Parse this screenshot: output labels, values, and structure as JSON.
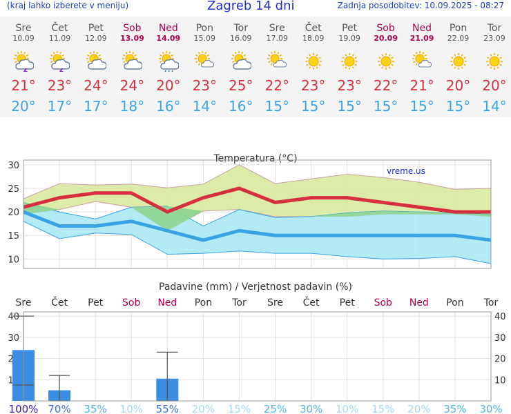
{
  "header": {
    "left_note": "(kraj lahko izberete v meniju)",
    "title": "Zagreb 14 dni",
    "updated": "Zadnja posodobitev: 10.09.2025 - 08:27"
  },
  "days": [
    {
      "name": "Sre",
      "date": "10.09",
      "weekend": false,
      "icon": "sun-cloud-thunder-icon",
      "tmax": "21°",
      "tmin": "20°"
    },
    {
      "name": "Čet",
      "date": "11.09",
      "weekend": false,
      "icon": "sun-cloud-thunder-icon",
      "tmax": "23°",
      "tmin": "17°"
    },
    {
      "name": "Pet",
      "date": "12.09",
      "weekend": false,
      "icon": "sun-cloud-icon",
      "tmax": "24°",
      "tmin": "17°"
    },
    {
      "name": "Sob",
      "date": "13.09",
      "weekend": true,
      "icon": "sun-cloud-icon",
      "tmax": "24°",
      "tmin": "18°"
    },
    {
      "name": "Ned",
      "date": "14.09",
      "weekend": true,
      "icon": "sun-cloud-rain-icon",
      "tmax": "20°",
      "tmin": "16°"
    },
    {
      "name": "Pon",
      "date": "15.09",
      "weekend": false,
      "icon": "sun-small-cloud-icon",
      "tmax": "23°",
      "tmin": "14°"
    },
    {
      "name": "Tor",
      "date": "16.09",
      "weekend": false,
      "icon": "sun-cloud-icon",
      "tmax": "25°",
      "tmin": "16°"
    },
    {
      "name": "Sre",
      "date": "17.09",
      "weekend": false,
      "icon": "sun-small-cloud-icon",
      "tmax": "22°",
      "tmin": "15°"
    },
    {
      "name": "Čet",
      "date": "18.09",
      "weekend": false,
      "icon": "sun-icon",
      "tmax": "23°",
      "tmin": "15°"
    },
    {
      "name": "Pet",
      "date": "19.09",
      "weekend": false,
      "icon": "sun-icon",
      "tmax": "23°",
      "tmin": "15°"
    },
    {
      "name": "Sob",
      "date": "20.09",
      "weekend": true,
      "icon": "sun-icon",
      "tmax": "22°",
      "tmin": "15°"
    },
    {
      "name": "Ned",
      "date": "21.09",
      "weekend": true,
      "icon": "sun-small-cloud-icon",
      "tmax": "21°",
      "tmin": "15°"
    },
    {
      "name": "Pon",
      "date": "22.09",
      "weekend": false,
      "icon": "sun-icon",
      "tmax": "20°",
      "tmin": "15°"
    },
    {
      "name": "Tor",
      "date": "23.09",
      "weekend": false,
      "icon": "sun-icon",
      "tmax": "20°",
      "tmin": "14°"
    }
  ],
  "colors": {
    "tmax": "#d63040",
    "tmin": "#3aa3e6",
    "weekend": "#b0004e",
    "max_band": "#d6e89a",
    "min_band": "#a6e6f2",
    "overlap_band": "#8fd48f",
    "precip_bar": "#3a8de0"
  },
  "chart_data": [
    {
      "type": "line",
      "title": "Temperatura (°C)",
      "watermark": "vreme.us",
      "x": [
        "Sre",
        "Čet",
        "Pet",
        "Sob",
        "Ned",
        "Pon",
        "Tor",
        "Sre",
        "Čet",
        "Pet",
        "Sob",
        "Ned",
        "Pon",
        "Tor"
      ],
      "ylim": [
        8,
        31
      ],
      "yticks": [
        10,
        15,
        20,
        25,
        30
      ],
      "grid": true,
      "series": [
        {
          "role": "max",
          "values": [
            21,
            23,
            24,
            24,
            20,
            23,
            25,
            22,
            23,
            23,
            22,
            21,
            20,
            20
          ]
        },
        {
          "role": "min",
          "values": [
            20,
            17,
            17,
            18,
            16,
            14,
            16,
            15,
            15,
            15,
            15,
            15,
            15,
            14
          ]
        }
      ],
      "max_band": {
        "upper": [
          22.8,
          26,
          25.7,
          25.9,
          25.1,
          25.9,
          30,
          26,
          27,
          28,
          27.3,
          26.3,
          24.8,
          25
        ],
        "lower": [
          19.5,
          20.5,
          22.2,
          21,
          16,
          20.2,
          20.5,
          19,
          19,
          19,
          19.5,
          19.5,
          19.5,
          19
        ]
      },
      "min_band": {
        "upper": [
          22,
          20,
          18.5,
          21,
          21.2,
          17,
          20.5,
          18.8,
          19,
          19.8,
          20.2,
          20,
          19.7,
          19.5
        ],
        "lower": [
          18,
          14.3,
          15.5,
          15.2,
          11,
          11.2,
          11.7,
          11.2,
          11.2,
          10.5,
          10,
          10.1,
          10.5,
          9
        ]
      }
    },
    {
      "type": "bar",
      "title": "Padavine (mm) / Verjetnost padavin (%)",
      "categories": [
        "Sre",
        "Čet",
        "Pet",
        "Sob",
        "Ned",
        "Pon",
        "Tor",
        "Sre",
        "Čet",
        "Pet",
        "Sob",
        "Ned",
        "Pon",
        "Tor"
      ],
      "values": [
        24,
        5,
        0,
        0,
        10.5,
        0,
        0,
        0,
        0,
        0,
        0,
        0,
        0,
        0
      ],
      "error_high": [
        40,
        12,
        null,
        null,
        23,
        null,
        null,
        null,
        null,
        null,
        null,
        null,
        null,
        null
      ],
      "error_low": [
        7.5,
        0,
        null,
        null,
        0,
        null,
        null,
        null,
        null,
        null,
        null,
        null,
        null,
        null
      ],
      "probability": [
        "100%",
        "70%",
        "35%",
        "10%",
        "55%",
        "20%",
        "15%",
        "25%",
        "30%",
        "10%",
        "15%",
        "20%",
        "35%",
        "30%"
      ],
      "ylim": [
        0,
        42
      ],
      "yticks": [
        0,
        10,
        20,
        30,
        40
      ],
      "grid": true
    }
  ]
}
